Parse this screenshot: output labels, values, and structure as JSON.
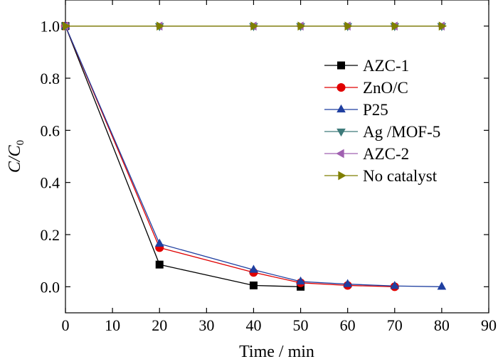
{
  "chart_data": {
    "type": "line",
    "xlabel": "Time / min",
    "ylabel_main": "C/C",
    "ylabel_sub": "0",
    "xlim": [
      0,
      90
    ],
    "ylim": [
      -0.1,
      1.1
    ],
    "xticks": [
      0,
      10,
      20,
      30,
      40,
      50,
      60,
      70,
      80,
      90
    ],
    "yticks": [
      0.0,
      0.2,
      0.4,
      0.6,
      0.8,
      1.0
    ],
    "ytick_labels": [
      "0.0",
      "0.2",
      "0.4",
      "0.6",
      "0.8",
      "1.0"
    ],
    "grid": false,
    "legend_position": "right",
    "series": [
      {
        "name": "AZC-1",
        "color": "#000000",
        "marker": "square",
        "x": [
          0,
          20,
          40,
          50
        ],
        "y": [
          1.0,
          0.085,
          0.005,
          0.0
        ]
      },
      {
        "name": "ZnO/C",
        "color": "#e00000",
        "marker": "circle",
        "x": [
          0,
          20,
          40,
          50,
          60,
          70
        ],
        "y": [
          1.0,
          0.15,
          0.055,
          0.015,
          0.005,
          0.0
        ]
      },
      {
        "name": "P25",
        "color": "#1f3fa0",
        "marker": "triangle-up",
        "x": [
          0,
          20,
          40,
          50,
          60,
          70,
          80
        ],
        "y": [
          1.0,
          0.165,
          0.065,
          0.02,
          0.01,
          0.003,
          0.0
        ]
      },
      {
        "name": "Ag /MOF-5",
        "color": "#3d7a7a",
        "marker": "triangle-down",
        "x": [
          0,
          20,
          40,
          50,
          60,
          70,
          80
        ],
        "y": [
          1.0,
          1.0,
          1.0,
          1.0,
          1.0,
          1.0,
          1.0
        ]
      },
      {
        "name": "AZC-2",
        "color": "#a060b0",
        "marker": "triangle-left",
        "x": [
          0,
          20,
          40,
          50,
          60,
          70,
          80
        ],
        "y": [
          1.0,
          1.0,
          1.0,
          1.0,
          1.0,
          1.0,
          1.0
        ]
      },
      {
        "name": "No catalyst",
        "color": "#7f7f00",
        "marker": "triangle-right",
        "x": [
          0,
          20,
          40,
          50,
          60,
          70,
          80
        ],
        "y": [
          1.0,
          1.0,
          1.0,
          1.0,
          1.0,
          1.0,
          1.0
        ]
      }
    ]
  }
}
